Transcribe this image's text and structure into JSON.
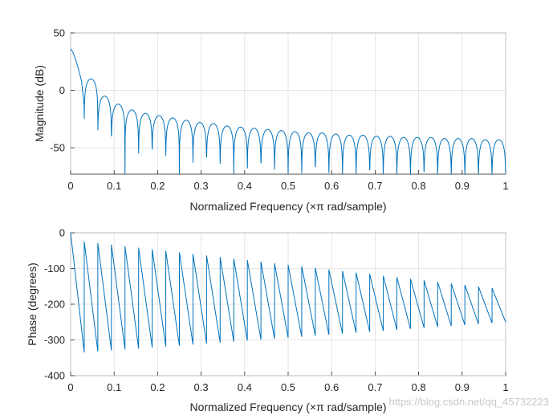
{
  "chart_data": [
    {
      "type": "line",
      "ylabel": "Magnitude (dB)",
      "xlabel": "Normalized Frequency  (×π rad/sample)",
      "xlim": [
        0,
        1
      ],
      "ylim": [
        -73,
        50
      ],
      "xticks": [
        "0",
        "0.1",
        "0.2",
        "0.3",
        "0.4",
        "0.5",
        "0.6",
        "0.7",
        "0.8",
        "0.9",
        "1"
      ],
      "yticks": [
        "50",
        "0",
        "-50"
      ],
      "ytick_values": [
        50,
        0,
        -50
      ],
      "grid": true,
      "line_color": "#0072bd",
      "dc_level_db": 36,
      "null_spacing": 0.03125,
      "lobe_peaks_db": [
        10,
        -5,
        -12,
        -17,
        -20,
        -22,
        -24,
        -26,
        -28,
        -29,
        -31,
        -32,
        -33,
        -34,
        -35,
        -36,
        -37,
        -37,
        -38,
        -39,
        -39,
        -40,
        -40,
        -41,
        -41,
        -41,
        -42,
        -42,
        -42,
        -43,
        -43
      ]
    },
    {
      "type": "line",
      "ylabel": "Phase (degrees)",
      "xlabel": "Normalized Frequency  (×π rad/sample)",
      "xlim": [
        0,
        1
      ],
      "ylim": [
        -400,
        0
      ],
      "xticks": [
        "0",
        "0.1",
        "0.2",
        "0.3",
        "0.4",
        "0.5",
        "0.6",
        "0.7",
        "0.8",
        "0.9",
        "1"
      ],
      "yticks": [
        "0",
        "-100",
        "-200",
        "-300",
        "-400"
      ],
      "ytick_values": [
        0,
        -100,
        -200,
        -300,
        -400
      ],
      "grid": true,
      "line_color": "#0072bd",
      "sawtooth_period": 0.03125,
      "segment_top_start": -20,
      "segment_top_end": -155,
      "segment_bottom_start": -335,
      "segment_bottom_end": -250
    }
  ],
  "watermark": "https://blog.csdn.net/qq_45732223"
}
